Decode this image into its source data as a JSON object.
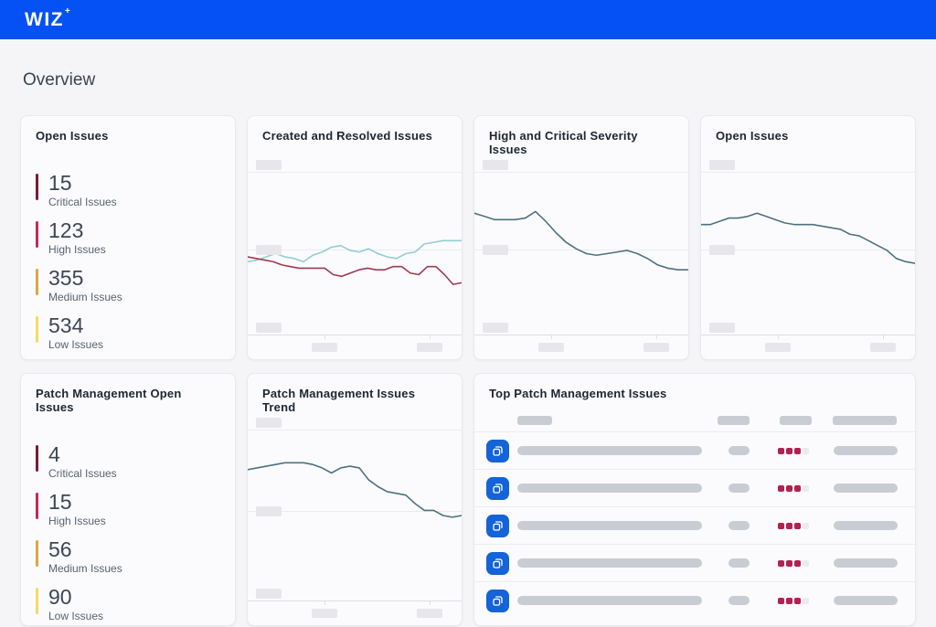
{
  "colors": {
    "brand_blue": "#0551F5",
    "page_bg": "#F5F5F8",
    "card_bg": "#FBFBFD",
    "card_border": "#E9E9EF",
    "heading_text": "#3A4350",
    "title_text": "#1E2632",
    "number_text": "#3E4654",
    "label_text": "#5A626F",
    "critical": "#7A1B33",
    "high": "#C22A52",
    "medium": "#DFA642",
    "low": "#F2DB63",
    "skeleton_light": "#E7E7EB",
    "skeleton_dark": "#C9CCD3",
    "grid_line": "#ECECF0",
    "axis_line": "#DEDEE4",
    "divider": "#ECECF1",
    "icon_blue": "#1463D8",
    "pip_red": "#B02250",
    "pip_faint": "#EBEBEF",
    "line_created": "#93CED4",
    "line_resolved": "#A03A50",
    "line_trend": "#4E7280"
  },
  "header": {
    "logo_text": "WIZ",
    "logo_mark": "+"
  },
  "page": {
    "title": "Overview"
  },
  "cards": {
    "open_issues": {
      "title": "Open Issues",
      "items": [
        {
          "count": "15",
          "label": "Critical Issues",
          "severity": "critical"
        },
        {
          "count": "123",
          "label": "High Issues",
          "severity": "high"
        },
        {
          "count": "355",
          "label": "Medium Issues",
          "severity": "medium"
        },
        {
          "count": "534",
          "label": "Low Issues",
          "severity": "low"
        }
      ]
    },
    "created_resolved": {
      "title": "Created and Resolved Issues"
    },
    "high_critical": {
      "title": "High and Critical Severity Issues"
    },
    "open_issues_chart": {
      "title": "Open Issues"
    },
    "patch_open": {
      "title": "Patch Management Open Issues",
      "items": [
        {
          "count": "4",
          "label": "Critical Issues",
          "severity": "critical"
        },
        {
          "count": "15",
          "label": "High Issues",
          "severity": "high"
        },
        {
          "count": "56",
          "label": "Medium Issues",
          "severity": "medium"
        },
        {
          "count": "90",
          "label": "Low Issues",
          "severity": "low"
        }
      ]
    },
    "patch_trend": {
      "title": "Patch Management Issues Trend"
    },
    "top_patch": {
      "title": "Top Patch Management Issues",
      "cells": "all column headers and cell text shown as gray skeleton placeholders",
      "rows": [
        {
          "severity_filled": 3,
          "severity_total": 4
        },
        {
          "severity_filled": 3,
          "severity_total": 4
        },
        {
          "severity_filled": 3,
          "severity_total": 4
        },
        {
          "severity_filled": 3,
          "severity_total": 4
        },
        {
          "severity_filled": 3,
          "severity_total": 4
        }
      ]
    }
  },
  "chart_data": [
    {
      "id": "created_resolved",
      "type": "line",
      "title": "Created and Resolved Issues",
      "xlabel": "time (tick labels are redacted placeholders at 36% and 85%)",
      "ylabel": "issue count (tick labels are redacted placeholders)",
      "value_scale": "normalized 0-1 fraction of plot height (numeric axis values not visible)",
      "legend": "none",
      "series": [
        {
          "name": "Created",
          "color": "#93CED4",
          "values": [
            0.45,
            0.46,
            0.48,
            0.5,
            0.48,
            0.47,
            0.45,
            0.49,
            0.51,
            0.54,
            0.55,
            0.52,
            0.51,
            0.53,
            0.5,
            0.48,
            0.47,
            0.5,
            0.51,
            0.56,
            0.57,
            0.58,
            0.58,
            0.58
          ]
        },
        {
          "name": "Resolved",
          "color": "#A03A50",
          "values": [
            0.48,
            0.47,
            0.46,
            0.45,
            0.43,
            0.42,
            0.41,
            0.41,
            0.41,
            0.41,
            0.37,
            0.36,
            0.38,
            0.4,
            0.41,
            0.4,
            0.4,
            0.42,
            0.42,
            0.38,
            0.37,
            0.42,
            0.42,
            0.37,
            0.31,
            0.32
          ]
        }
      ]
    },
    {
      "id": "high_critical",
      "type": "line",
      "title": "High and Critical Severity Issues",
      "xlabel": "time (tick labels are redacted placeholders at 36% and 85%)",
      "ylabel": "issue count (tick labels are redacted placeholders)",
      "value_scale": "normalized 0-1 fraction of plot height (numeric axis values not visible)",
      "legend": "none",
      "series": [
        {
          "name": "High and Critical Issues",
          "color": "#4E7280",
          "values": [
            0.75,
            0.73,
            0.71,
            0.71,
            0.71,
            0.72,
            0.76,
            0.7,
            0.63,
            0.57,
            0.53,
            0.5,
            0.49,
            0.5,
            0.51,
            0.52,
            0.5,
            0.47,
            0.43,
            0.41,
            0.4,
            0.4
          ]
        }
      ]
    },
    {
      "id": "open_issues_chart",
      "type": "line",
      "title": "Open Issues",
      "xlabel": "time (tick labels are redacted placeholders at 36% and 85%)",
      "ylabel": "issue count (tick labels are redacted placeholders)",
      "value_scale": "normalized 0-1 fraction of plot height (numeric axis values not visible)",
      "legend": "none",
      "series": [
        {
          "name": "Open Issues",
          "color": "#4E7280",
          "values": [
            0.68,
            0.68,
            0.7,
            0.72,
            0.72,
            0.73,
            0.75,
            0.73,
            0.71,
            0.69,
            0.68,
            0.68,
            0.68,
            0.67,
            0.66,
            0.65,
            0.62,
            0.61,
            0.58,
            0.55,
            0.52,
            0.47,
            0.45,
            0.44
          ]
        }
      ]
    },
    {
      "id": "patch_trend",
      "type": "line",
      "title": "Patch Management Issues Trend",
      "xlabel": "time (tick labels are redacted placeholders at 36% and 85%)",
      "ylabel": "issue count (tick labels are redacted placeholders)",
      "value_scale": "normalized 0-1 fraction of plot height (numeric axis values not visible)",
      "legend": "none",
      "series": [
        {
          "name": "Patch Management Issues",
          "color": "#4E7280",
          "values": [
            0.77,
            0.78,
            0.79,
            0.8,
            0.81,
            0.81,
            0.81,
            0.8,
            0.78,
            0.75,
            0.78,
            0.79,
            0.78,
            0.71,
            0.67,
            0.64,
            0.63,
            0.62,
            0.57,
            0.53,
            0.53,
            0.5,
            0.49,
            0.5
          ]
        }
      ]
    }
  ]
}
